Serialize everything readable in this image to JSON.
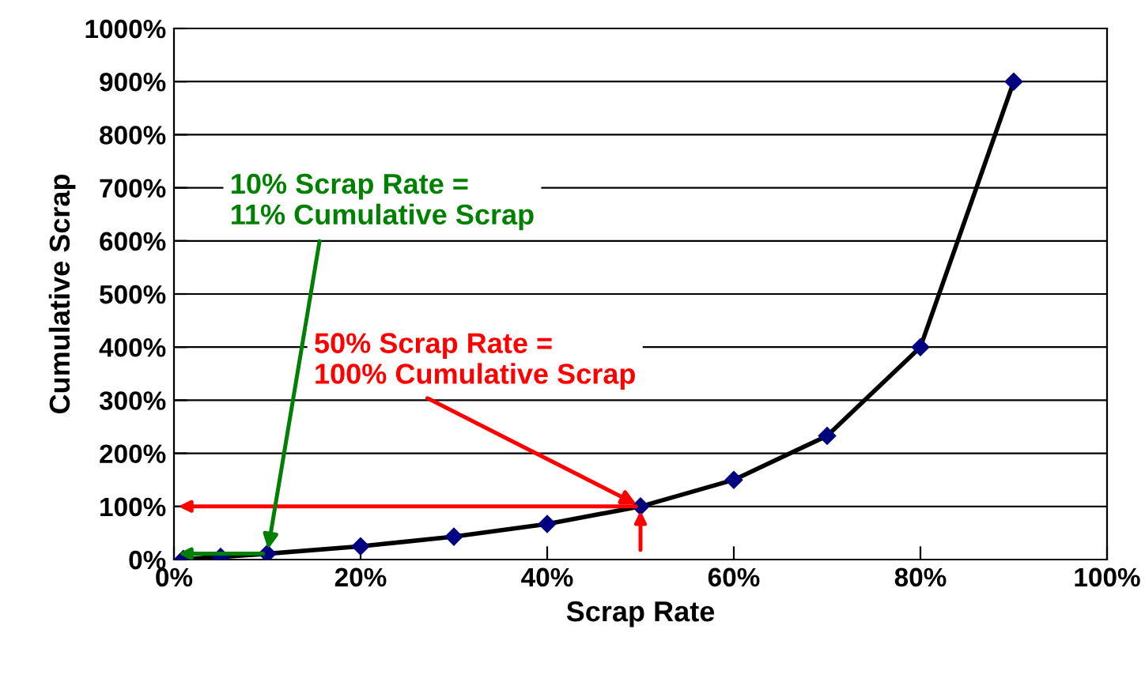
{
  "chart_data": {
    "type": "line",
    "xlabel": "Scrap Rate",
    "ylabel": "Cumulative Scrap",
    "x": [
      1,
      5,
      10,
      20,
      30,
      40,
      50,
      60,
      70,
      80,
      90
    ],
    "series": [
      {
        "color": "#000080",
        "values": [
          1,
          5,
          11,
          25,
          43,
          67,
          100,
          150,
          233,
          400,
          900
        ]
      }
    ],
    "marker": "diamond",
    "line_style": "solid",
    "grid": "y",
    "xlim": [
      0,
      100
    ],
    "ylim": [
      0,
      1000
    ],
    "xticks": [
      {
        "value": 0,
        "label": "0%"
      },
      {
        "value": 20,
        "label": "20%"
      },
      {
        "value": 40,
        "label": "40%"
      },
      {
        "value": 60,
        "label": "60%"
      },
      {
        "value": 80,
        "label": "80%"
      },
      {
        "value": 100,
        "label": "100%"
      }
    ],
    "yticks": [
      {
        "value": 0,
        "label": "0%"
      },
      {
        "value": 100,
        "label": "100%"
      },
      {
        "value": 200,
        "label": "200%"
      },
      {
        "value": 300,
        "label": "300%"
      },
      {
        "value": 400,
        "label": "400%"
      },
      {
        "value": 500,
        "label": "500%"
      },
      {
        "value": 600,
        "label": "600%"
      },
      {
        "value": 700,
        "label": "700%"
      },
      {
        "value": 800,
        "label": "800%"
      },
      {
        "value": 900,
        "label": "900%"
      },
      {
        "value": 1000,
        "label": "1000%"
      }
    ],
    "annotations": [
      {
        "text": "10% Scrap Rate =\n11% Cumulative Scrap",
        "x": 10,
        "y": 11
      },
      {
        "text": "50% Scrap Rate =\n100% Cumulative Scrap",
        "x": 50,
        "y": 100
      }
    ]
  }
}
